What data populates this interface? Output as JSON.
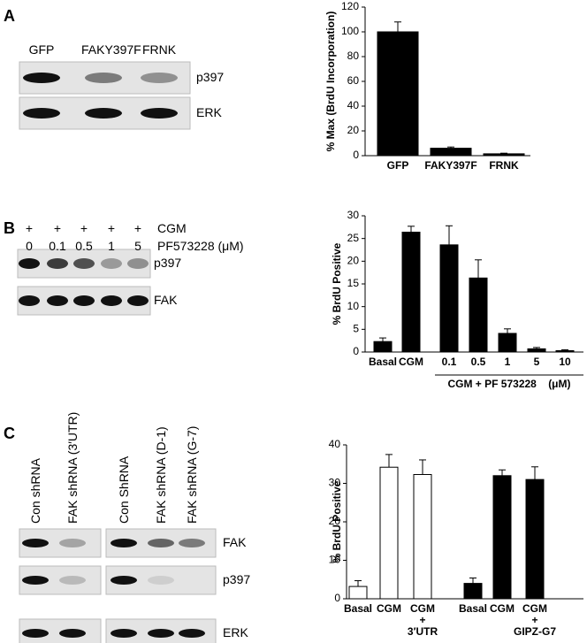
{
  "panels": [
    "A",
    "B",
    "C"
  ],
  "blots": [
    {
      "lanes": [
        "GFP",
        "FAKY397F",
        "FRNK"
      ],
      "rows": [
        "p397",
        "ERK"
      ]
    },
    {
      "treatment": [
        "+",
        "+",
        "+",
        "+",
        "+"
      ],
      "treatment_label": "CGM",
      "doses": [
        "0",
        "0.1",
        "0.5",
        "1",
        "5"
      ],
      "dose_label": "PF573228 (μM)",
      "rows": [
        "p397",
        "FAK"
      ]
    },
    {
      "lanes": [
        "Con shRNA",
        "FAK shRNA (3′UTR)",
        "Con ShRNA",
        "FAK shRNA (D-1)",
        "FAK shRNA (G-7)"
      ],
      "rows": [
        "FAK",
        "p397",
        "ERK"
      ]
    }
  ],
  "chart_data": [
    {
      "type": "bar",
      "y_label": "% Max (BrdU Incorporation)",
      "categories": [
        "GFP",
        "FAKY397F",
        "FRNK"
      ],
      "values": [
        100,
        6,
        1.5
      ],
      "errors": [
        8,
        1,
        0.5
      ],
      "colors": [
        "#000000",
        "#000000",
        "#000000"
      ],
      "ylim": [
        0,
        120
      ],
      "yticks": [
        0,
        20,
        40,
        60,
        80,
        100,
        120
      ]
    },
    {
      "type": "bar",
      "y_label": "% BrdU Positive",
      "categories": [
        "Basal",
        "CGM",
        "0.1",
        "0.5",
        "1",
        "5",
        "10"
      ],
      "values": [
        2.3,
        26.4,
        23.6,
        16.3,
        4.1,
        0.7,
        0.3
      ],
      "errors": [
        0.8,
        1.3,
        4.2,
        4,
        1,
        0.3,
        0.2
      ],
      "colors": [
        "#000000",
        "#000000",
        "#000000",
        "#000000",
        "#000000",
        "#000000",
        "#000000"
      ],
      "annotation": "CGM + PF 573228    (μM)",
      "ylim": [
        0,
        30
      ],
      "yticks": [
        0,
        5,
        10,
        15,
        20,
        25,
        30
      ]
    },
    {
      "type": "bar",
      "y_label": "% BrdU Positive",
      "categories": [
        "Basal",
        "CGM",
        "CGM\n+\n3′UTR",
        "Basal",
        "CGM",
        "CGM\n+\nGIPZ-G7"
      ],
      "values": [
        3.2,
        34.2,
        32.3,
        4,
        32,
        31
      ],
      "errors": [
        1.5,
        3.3,
        3.8,
        1.4,
        1.5,
        3.3
      ],
      "colors": [
        "#ffffff",
        "#ffffff",
        "#ffffff",
        "#000000",
        "#000000",
        "#000000"
      ],
      "ylim": [
        0,
        40
      ],
      "yticks": [
        0,
        10,
        20,
        30,
        40
      ]
    }
  ]
}
